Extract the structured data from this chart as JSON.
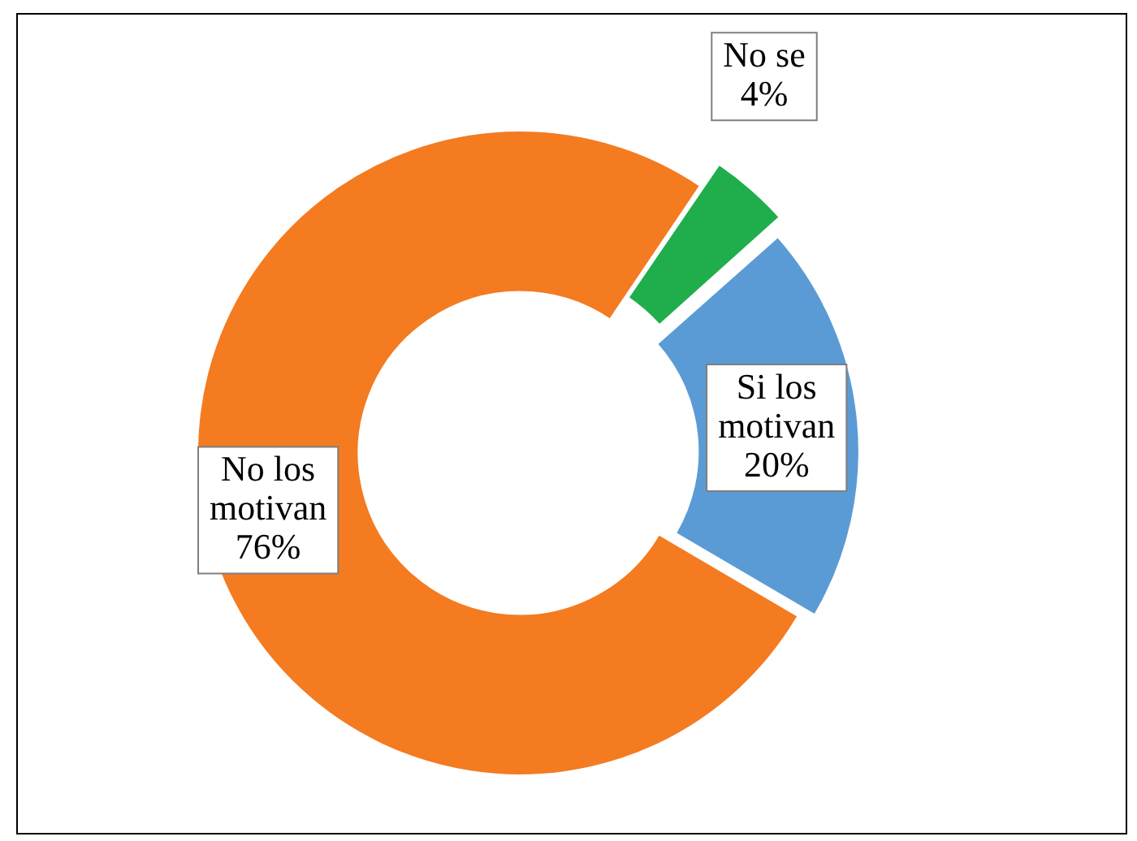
{
  "chart_data": {
    "type": "donut",
    "categories": [
      "No se",
      "Si los motivan",
      "No los motivan"
    ],
    "values": [
      4,
      20,
      76
    ],
    "colors": [
      "#1fae4b",
      "#5b9bd5",
      "#f47b20"
    ],
    "value_labels": [
      "4%",
      "20%",
      "76%"
    ],
    "legend": false
  }
}
